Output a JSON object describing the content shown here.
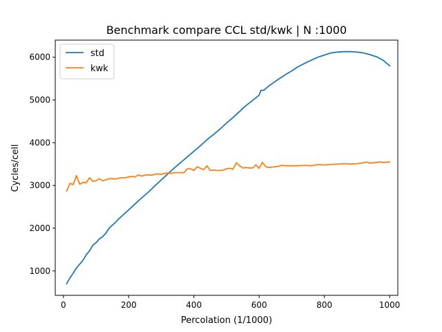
{
  "chart_data": {
    "type": "line",
    "title": "Benchmark compare CCL std/kwk | N :1000",
    "xlabel": "Percolation (1/1000)",
    "ylabel": "Cycles/cell",
    "xlim": [
      -25,
      1025
    ],
    "ylim": [
      430,
      6400
    ],
    "x_ticks": [
      0,
      200,
      400,
      600,
      800,
      1000
    ],
    "y_ticks": [
      1000,
      2000,
      3000,
      4000,
      5000,
      6000
    ],
    "grid": false,
    "legend_position": "top-left",
    "series": [
      {
        "name": "std",
        "color": "#1f77b4",
        "points": [
          [
            10,
            700
          ],
          [
            20,
            840
          ],
          [
            30,
            950
          ],
          [
            40,
            1070
          ],
          [
            50,
            1160
          ],
          [
            60,
            1250
          ],
          [
            70,
            1380
          ],
          [
            80,
            1470
          ],
          [
            90,
            1600
          ],
          [
            100,
            1660
          ],
          [
            110,
            1750
          ],
          [
            120,
            1800
          ],
          [
            130,
            1880
          ],
          [
            140,
            2000
          ],
          [
            150,
            2070
          ],
          [
            160,
            2140
          ],
          [
            170,
            2220
          ],
          [
            180,
            2290
          ],
          [
            190,
            2360
          ],
          [
            200,
            2430
          ],
          [
            220,
            2570
          ],
          [
            240,
            2710
          ],
          [
            260,
            2840
          ],
          [
            280,
            2990
          ],
          [
            300,
            3130
          ],
          [
            320,
            3270
          ],
          [
            340,
            3410
          ],
          [
            360,
            3540
          ],
          [
            380,
            3670
          ],
          [
            400,
            3800
          ],
          [
            420,
            3930
          ],
          [
            440,
            4070
          ],
          [
            460,
            4190
          ],
          [
            480,
            4320
          ],
          [
            500,
            4460
          ],
          [
            520,
            4590
          ],
          [
            540,
            4730
          ],
          [
            560,
            4870
          ],
          [
            580,
            4990
          ],
          [
            600,
            5110
          ],
          [
            605,
            5220
          ],
          [
            615,
            5230
          ],
          [
            630,
            5330
          ],
          [
            660,
            5490
          ],
          [
            680,
            5590
          ],
          [
            700,
            5680
          ],
          [
            720,
            5780
          ],
          [
            740,
            5860
          ],
          [
            760,
            5930
          ],
          [
            780,
            6000
          ],
          [
            800,
            6050
          ],
          [
            820,
            6100
          ],
          [
            840,
            6120
          ],
          [
            860,
            6130
          ],
          [
            880,
            6130
          ],
          [
            900,
            6120
          ],
          [
            920,
            6100
          ],
          [
            940,
            6060
          ],
          [
            960,
            6010
          ],
          [
            980,
            5930
          ],
          [
            1000,
            5800
          ]
        ]
      },
      {
        "name": "kwk",
        "color": "#ff7f0e",
        "points": [
          [
            10,
            2870
          ],
          [
            20,
            3050
          ],
          [
            30,
            3020
          ],
          [
            40,
            3230
          ],
          [
            50,
            3030
          ],
          [
            60,
            3070
          ],
          [
            70,
            3060
          ],
          [
            80,
            3180
          ],
          [
            90,
            3100
          ],
          [
            100,
            3110
          ],
          [
            110,
            3160
          ],
          [
            120,
            3110
          ],
          [
            130,
            3130
          ],
          [
            140,
            3160
          ],
          [
            150,
            3160
          ],
          [
            160,
            3150
          ],
          [
            170,
            3170
          ],
          [
            180,
            3180
          ],
          [
            190,
            3180
          ],
          [
            200,
            3200
          ],
          [
            210,
            3210
          ],
          [
            220,
            3200
          ],
          [
            230,
            3250
          ],
          [
            240,
            3220
          ],
          [
            250,
            3240
          ],
          [
            260,
            3250
          ],
          [
            270,
            3240
          ],
          [
            280,
            3260
          ],
          [
            290,
            3270
          ],
          [
            300,
            3260
          ],
          [
            310,
            3280
          ],
          [
            320,
            3290
          ],
          [
            330,
            3280
          ],
          [
            340,
            3300
          ],
          [
            350,
            3300
          ],
          [
            360,
            3300
          ],
          [
            370,
            3300
          ],
          [
            380,
            3390
          ],
          [
            390,
            3390
          ],
          [
            400,
            3350
          ],
          [
            410,
            3440
          ],
          [
            420,
            3400
          ],
          [
            430,
            3370
          ],
          [
            440,
            3460
          ],
          [
            450,
            3350
          ],
          [
            460,
            3360
          ],
          [
            470,
            3350
          ],
          [
            480,
            3350
          ],
          [
            490,
            3360
          ],
          [
            500,
            3390
          ],
          [
            510,
            3400
          ],
          [
            520,
            3380
          ],
          [
            530,
            3530
          ],
          [
            540,
            3460
          ],
          [
            550,
            3410
          ],
          [
            560,
            3420
          ],
          [
            570,
            3410
          ],
          [
            580,
            3410
          ],
          [
            590,
            3480
          ],
          [
            600,
            3400
          ],
          [
            610,
            3540
          ],
          [
            620,
            3440
          ],
          [
            630,
            3420
          ],
          [
            640,
            3430
          ],
          [
            650,
            3440
          ],
          [
            660,
            3450
          ],
          [
            670,
            3470
          ],
          [
            680,
            3460
          ],
          [
            700,
            3460
          ],
          [
            720,
            3460
          ],
          [
            740,
            3470
          ],
          [
            760,
            3460
          ],
          [
            780,
            3490
          ],
          [
            800,
            3480
          ],
          [
            820,
            3490
          ],
          [
            840,
            3500
          ],
          [
            860,
            3510
          ],
          [
            880,
            3500
          ],
          [
            900,
            3510
          ],
          [
            920,
            3530
          ],
          [
            930,
            3550
          ],
          [
            940,
            3520
          ],
          [
            960,
            3540
          ],
          [
            970,
            3550
          ],
          [
            980,
            3540
          ],
          [
            1000,
            3550
          ]
        ]
      }
    ]
  }
}
